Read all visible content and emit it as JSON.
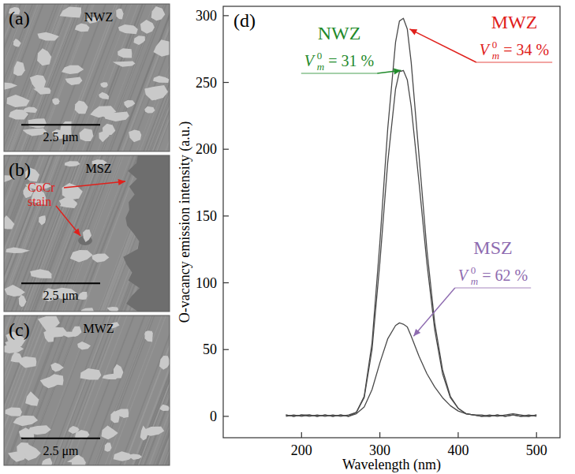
{
  "panels": [
    {
      "letter": "(a)",
      "title": "NWZ",
      "scale_bar": "2.5 μm"
    },
    {
      "letter": "(b)",
      "title": "MSZ",
      "scale_bar": "2.5 μm",
      "annotation": "CoCr stain"
    },
    {
      "letter": "(c)",
      "title": "MWZ",
      "scale_bar": "2.5 μm"
    }
  ],
  "chart_data": {
    "type": "line",
    "panel_label": "(d)",
    "x_label": "Wavelength (nm)",
    "y_label": "O-vacancy emission intensity (a.u.)",
    "x": [
      180,
      190,
      200,
      210,
      220,
      230,
      240,
      250,
      260,
      270,
      280,
      290,
      300,
      310,
      320,
      325,
      330,
      335,
      340,
      350,
      360,
      370,
      380,
      390,
      400,
      410,
      420,
      430,
      440,
      450,
      460,
      470,
      480,
      490,
      500
    ],
    "series": [
      {
        "name": "MWZ",
        "color": "#e0201b",
        "values": [
          1,
          0,
          1,
          0,
          1,
          0,
          1,
          0,
          1,
          3,
          15,
          55,
          130,
          215,
          280,
          296,
          298,
          290,
          265,
          195,
          125,
          70,
          35,
          15,
          6,
          2,
          1,
          0,
          1,
          0,
          1,
          2,
          1,
          0,
          1
        ],
        "annotation": {
          "symbol": "V",
          "subscript": "m",
          "superscript": "0",
          "text": "= 34 %"
        }
      },
      {
        "name": "NWZ",
        "color": "#1f8a2a",
        "values": [
          0,
          1,
          0,
          1,
          0,
          1,
          0,
          1,
          0,
          3,
          14,
          50,
          115,
          190,
          245,
          258,
          259,
          252,
          232,
          175,
          115,
          65,
          32,
          14,
          6,
          2,
          1,
          0,
          0,
          1,
          0,
          1,
          0,
          1,
          0
        ],
        "annotation": {
          "symbol": "V",
          "subscript": "m",
          "superscript": "0",
          "text": "= 31 %"
        }
      },
      {
        "name": "MSZ",
        "color": "#8e6bb0",
        "values": [
          1,
          0,
          1,
          1,
          0,
          1,
          0,
          1,
          0,
          2,
          7,
          20,
          40,
          58,
          68,
          70,
          69,
          67,
          60,
          45,
          32,
          22,
          14,
          8,
          4,
          2,
          1,
          1,
          0,
          1,
          0,
          1,
          0,
          0,
          1
        ],
        "annotation": {
          "symbol": "V",
          "subscript": "m",
          "superscript": "0",
          "text": "= 62 %"
        }
      }
    ],
    "xlim": [
      100,
      530
    ],
    "xticks": [
      200,
      300,
      400,
      500
    ],
    "ylim": [
      -16,
      307
    ],
    "yticks": [
      0,
      50,
      100,
      150,
      200,
      250,
      300
    ],
    "grid": false
  }
}
